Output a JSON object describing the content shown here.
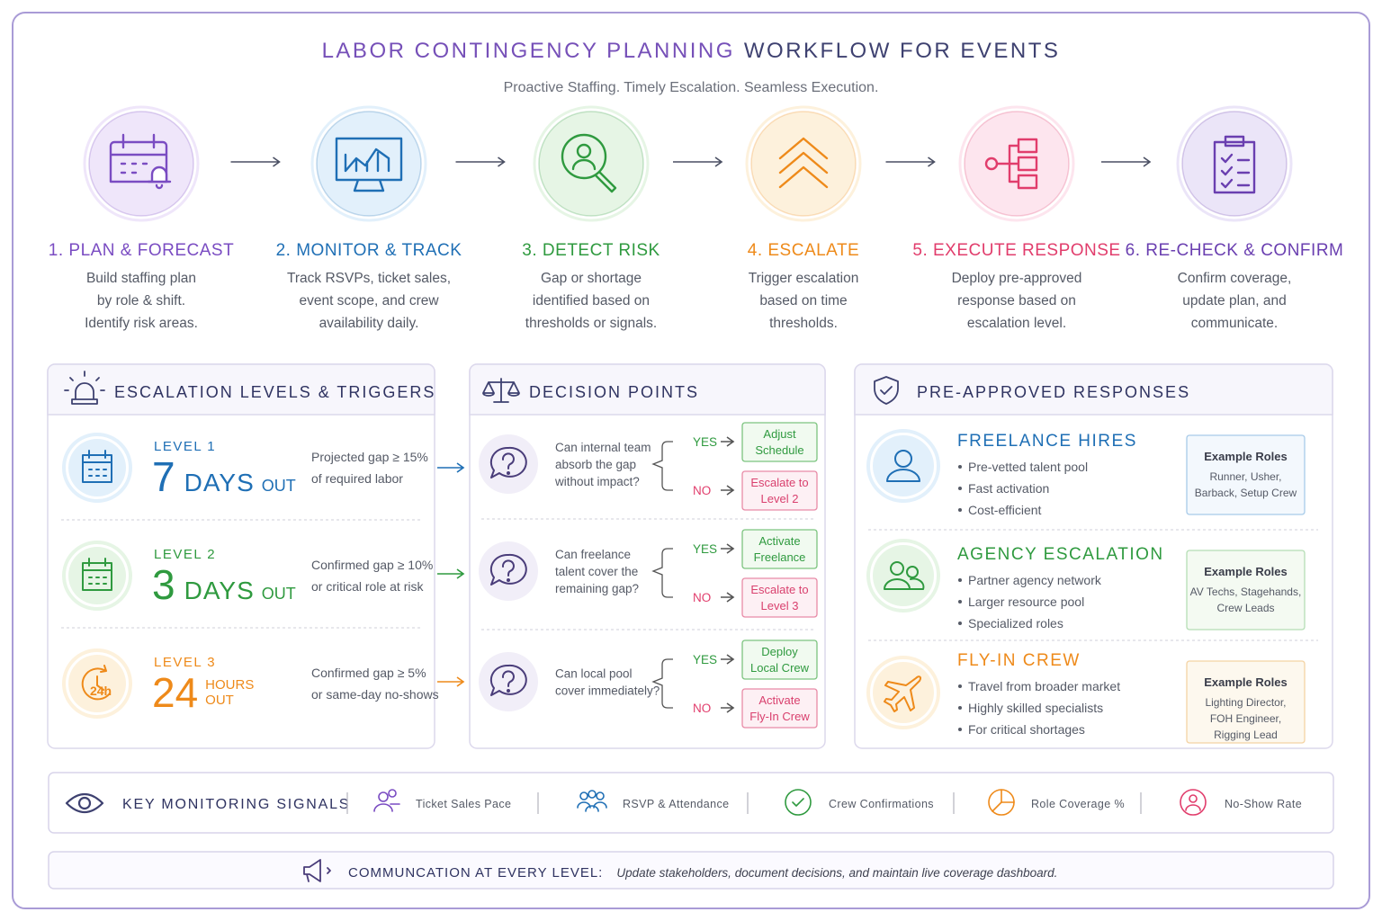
{
  "header": {
    "title_part1": "LABOR CONTINGENCY PLANNING",
    "title_part2": "WORKFLOW FOR EVENTS",
    "subtitle": "Proactive Staffing. Timely Escalation. Seamless Execution."
  },
  "steps": [
    {
      "label": "1. PLAN & FORECAST",
      "description": [
        "Build staffing plan",
        "by role & shift.",
        "Identify risk areas."
      ]
    },
    {
      "label": "2. MONITOR & TRACK",
      "description": [
        "Track RSVPs, ticket sales,",
        "event scope, and crew",
        "availability daily."
      ]
    },
    {
      "label": "3. DETECT RISK",
      "description": [
        "Gap or shortage",
        "identified based on",
        "thresholds or signals."
      ]
    },
    {
      "label": "4. ESCALATE",
      "description": [
        "Trigger escalation",
        "based on time",
        "thresholds."
      ]
    },
    {
      "label": "5. EXECUTE RESPONSE",
      "description": [
        "Deploy pre-approved",
        "response based on",
        "escalation level."
      ]
    },
    {
      "label": "6. RE-CHECK & CONFIRM",
      "description": [
        "Confirm coverage,",
        "update plan, and",
        "communicate."
      ]
    }
  ],
  "escalation": {
    "title": "ESCALATION LEVELS & TRIGGERS",
    "levels": [
      {
        "level": "LEVEL 1",
        "number": 7,
        "unit": "DAYS",
        "suffix": "OUT",
        "trigger": [
          "Projected gap ≥ 15%",
          "of required labor"
        ]
      },
      {
        "level": "LEVEL 2",
        "number": 3,
        "unit": "DAYS",
        "suffix": "OUT",
        "trigger": [
          "Confirmed gap ≥ 10%",
          "or critical role at risk"
        ]
      },
      {
        "level": "LEVEL 3",
        "number": 24,
        "unit": "HOURS",
        "suffix": "OUT",
        "icon_text": "24h",
        "trigger": [
          "Confirmed gap ≥ 5%",
          "or same-day no-shows"
        ]
      }
    ]
  },
  "decisions": {
    "title": "DECISION POINTS",
    "items": [
      {
        "question": [
          "Can internal team",
          "absorb the gap",
          "without impact?"
        ],
        "yes_label": "YES",
        "yes": [
          "Adjust",
          "Schedule"
        ],
        "no_label": "NO",
        "no": [
          "Escalate to",
          "Level 2"
        ]
      },
      {
        "question": [
          "Can freelance",
          "talent cover the",
          "remaining gap?"
        ],
        "yes_label": "YES",
        "yes": [
          "Activate",
          "Freelance"
        ],
        "no_label": "NO",
        "no": [
          "Escalate to",
          "Level 3"
        ]
      },
      {
        "question": [
          "Can local pool",
          "cover immediately?"
        ],
        "yes_label": "YES",
        "yes": [
          "Deploy",
          "Local Crew"
        ],
        "no_label": "NO",
        "no": [
          "Activate",
          "Fly-In Crew"
        ]
      }
    ]
  },
  "responses": {
    "title": "PRE-APPROVED RESPONSES",
    "items": [
      {
        "name": "FREELANCE HIRES",
        "bullets": [
          "Pre-vetted talent pool",
          "Fast activation",
          "Cost-efficient"
        ],
        "roles_title": "Example Roles",
        "roles": [
          "Runner, Usher,",
          "Barback, Setup Crew"
        ]
      },
      {
        "name": "AGENCY ESCALATION",
        "bullets": [
          "Partner agency network",
          "Larger resource pool",
          "Specialized roles"
        ],
        "roles_title": "Example Roles",
        "roles": [
          "AV Techs, Stagehands,",
          "Crew Leads"
        ]
      },
      {
        "name": "FLY-IN CREW",
        "bullets": [
          "Travel from broader market",
          "Highly skilled specialists",
          "For critical shortages"
        ],
        "roles_title": "Example Roles",
        "roles": [
          "Lighting Director,",
          "FOH Engineer,",
          "Rigging Lead"
        ]
      }
    ]
  },
  "signals": {
    "title": "KEY MONITORING SIGNALS",
    "items": [
      "Ticket Sales Pace",
      "RSVP & Attendance",
      "Crew Confirmations",
      "Role Coverage %",
      "No-Show Rate"
    ]
  },
  "communication": {
    "label": "COMMUNCATION AT EVERY LEVEL:",
    "text": "Update stakeholders, document decisions,  and maintain live coverage dashboard."
  }
}
